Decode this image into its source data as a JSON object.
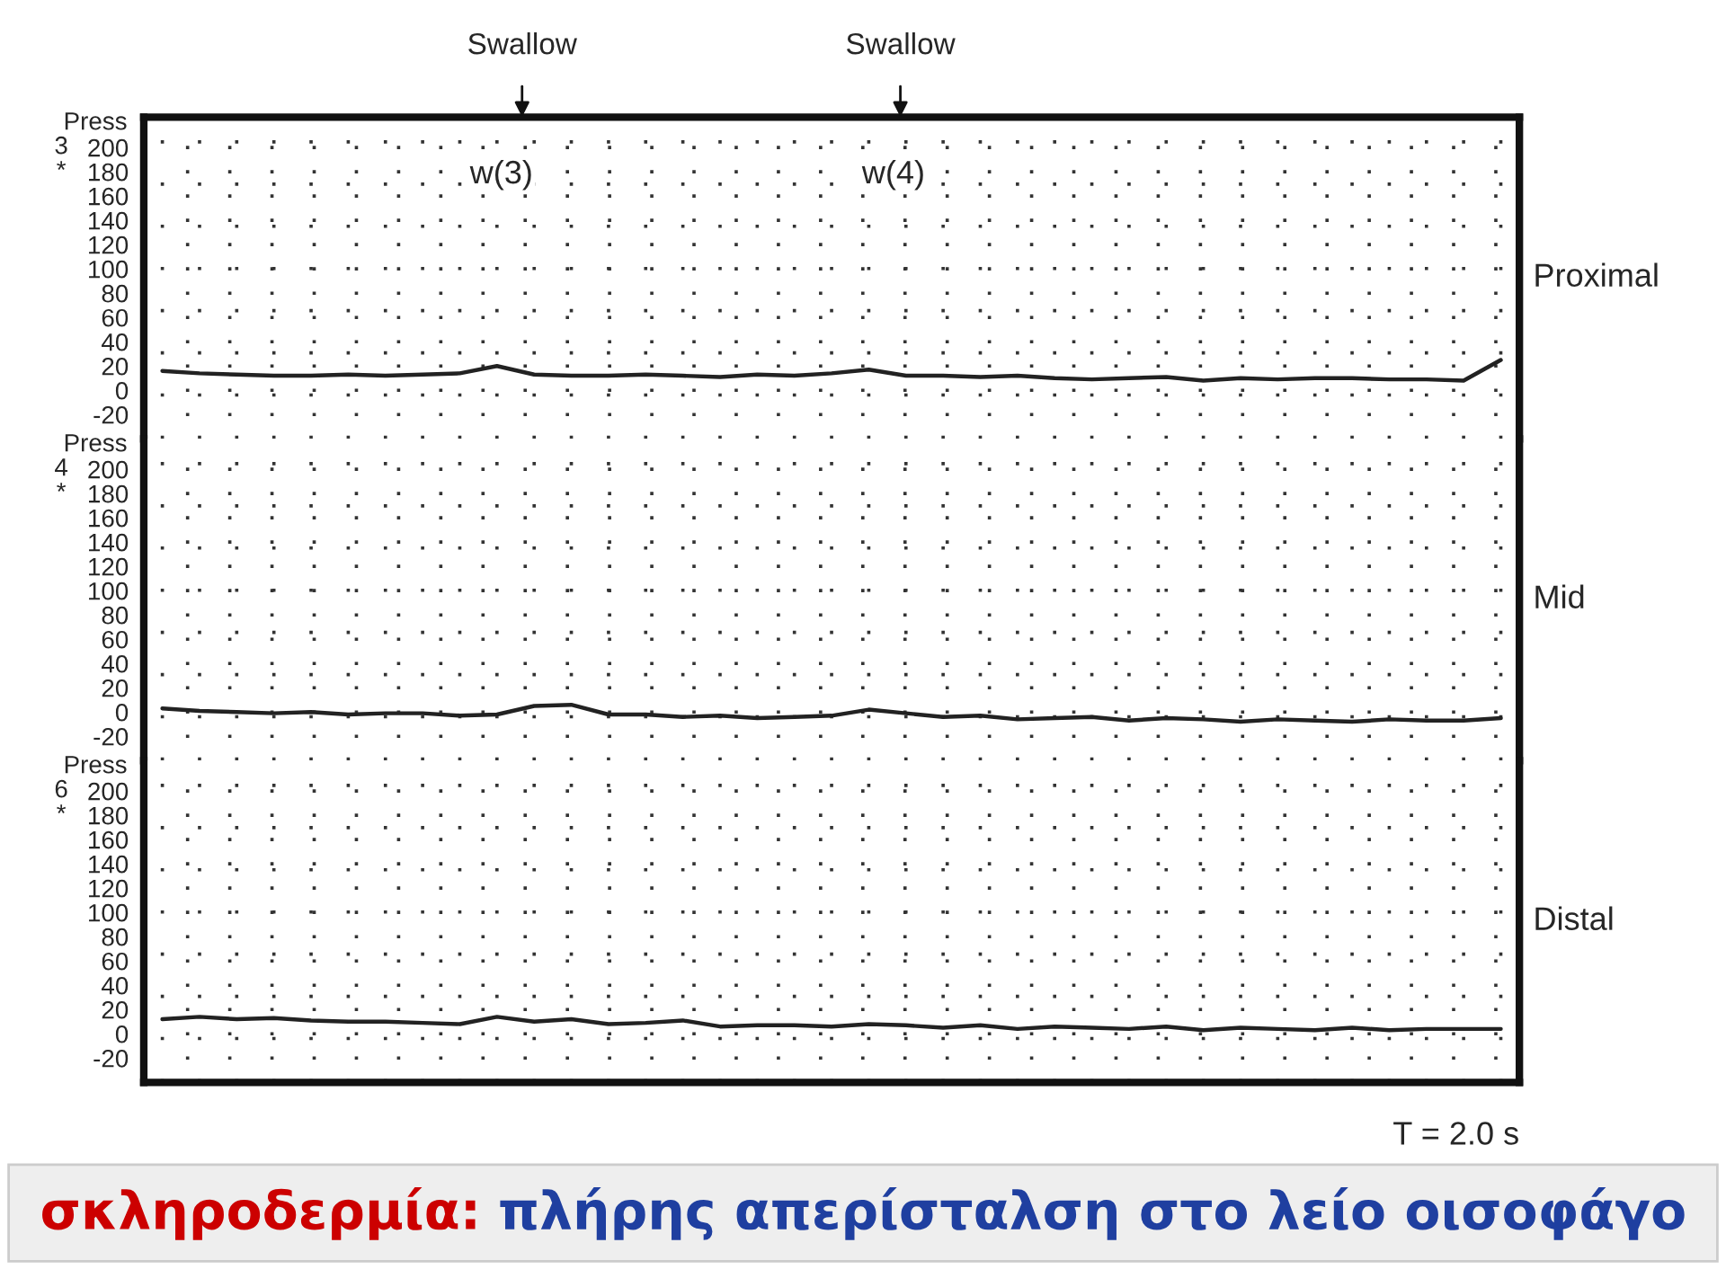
{
  "chart_data": [
    {
      "type": "line",
      "categories": [
        null,
        null,
        null,
        null,
        null,
        null,
        null,
        null,
        null,
        null,
        null,
        null,
        null,
        null,
        null,
        null,
        null,
        null,
        null,
        null,
        null,
        null,
        null,
        null,
        null,
        null,
        null,
        null,
        null,
        null,
        null,
        null,
        null,
        null,
        null,
        null,
        null
      ],
      "ylabel": "Press",
      "ylim": [
        -40,
        225
      ],
      "yticks": [
        -20,
        0,
        20,
        40,
        60,
        80,
        100,
        120,
        140,
        160,
        180,
        200
      ],
      "grid": true,
      "tick_labels": "y",
      "line_style": "solid",
      "series": [
        {
          "name": "Proximal",
          "color": "#222222",
          "values": [
            16,
            14,
            13,
            12,
            12,
            13,
            12,
            13,
            14,
            20,
            13,
            12,
            12,
            13,
            12,
            11,
            13,
            12,
            14,
            17,
            12,
            12,
            11,
            12,
            10,
            9,
            10,
            11,
            8,
            10,
            9,
            10,
            10,
            9,
            9,
            8,
            25
          ]
        }
      ],
      "annotations": [
        "3",
        "*",
        "Swallow",
        "Swallow",
        "w(3)",
        "w(4)"
      ]
    },
    {
      "type": "line",
      "categories": [
        null,
        null,
        null,
        null,
        null,
        null,
        null,
        null,
        null,
        null,
        null,
        null,
        null,
        null,
        null,
        null,
        null,
        null,
        null,
        null,
        null,
        null,
        null,
        null,
        null,
        null,
        null,
        null,
        null,
        null,
        null,
        null,
        null,
        null,
        null,
        null,
        null
      ],
      "ylabel": "Press",
      "ylim": [
        -40,
        225
      ],
      "yticks": [
        -20,
        0,
        20,
        40,
        60,
        80,
        100,
        120,
        140,
        160,
        180,
        200
      ],
      "grid": true,
      "tick_labels": "y",
      "line_style": "solid",
      "series": [
        {
          "name": "Mid",
          "color": "#222222",
          "values": [
            3,
            1,
            0,
            -1,
            0,
            -2,
            -1,
            -1,
            -3,
            -2,
            5,
            6,
            -2,
            -2,
            -4,
            -3,
            -5,
            -4,
            -3,
            2,
            -1,
            -4,
            -3,
            -6,
            -5,
            -4,
            -7,
            -5,
            -6,
            -8,
            -6,
            -7,
            -8,
            -6,
            -7,
            -7,
            -5
          ]
        }
      ],
      "annotations": [
        "4",
        "*"
      ]
    },
    {
      "type": "line",
      "categories": [
        null,
        null,
        null,
        null,
        null,
        null,
        null,
        null,
        null,
        null,
        null,
        null,
        null,
        null,
        null,
        null,
        null,
        null,
        null,
        null,
        null,
        null,
        null,
        null,
        null,
        null,
        null,
        null,
        null,
        null,
        null,
        null,
        null,
        null,
        null,
        null,
        null
      ],
      "ylabel": "Press",
      "xlabel": "T = 2.0 s",
      "ylim": [
        -40,
        225
      ],
      "yticks": [
        -20,
        0,
        20,
        40,
        60,
        80,
        100,
        120,
        140,
        160,
        180,
        200
      ],
      "grid": true,
      "tick_labels": "y",
      "line_style": "solid",
      "series": [
        {
          "name": "Distal",
          "color": "#222222",
          "values": [
            12,
            14,
            12,
            13,
            11,
            10,
            10,
            9,
            8,
            14,
            10,
            12,
            8,
            9,
            11,
            6,
            7,
            7,
            6,
            8,
            7,
            5,
            7,
            4,
            6,
            5,
            4,
            6,
            3,
            5,
            4,
            3,
            5,
            3,
            4,
            4,
            4
          ]
        }
      ],
      "annotations": [
        "6",
        "*",
        "σκληροδερμία:",
        "πλήρης απερίσταλση στο λείο οισοφάγο"
      ]
    }
  ]
}
